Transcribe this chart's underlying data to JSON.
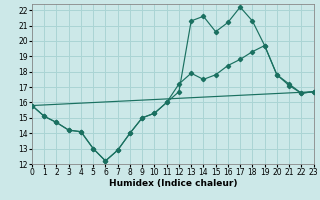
{
  "xlabel": "Humidex (Indice chaleur)",
  "background_color": "#cce8e8",
  "grid_color": "#aad4d4",
  "line_color": "#1a7060",
  "xlim": [
    0,
    23
  ],
  "ylim": [
    12,
    22.4
  ],
  "xticks": [
    0,
    1,
    2,
    3,
    4,
    5,
    6,
    7,
    8,
    9,
    10,
    11,
    12,
    13,
    14,
    15,
    16,
    17,
    18,
    19,
    20,
    21,
    22,
    23
  ],
  "yticks": [
    12,
    13,
    14,
    15,
    16,
    17,
    18,
    19,
    20,
    21,
    22
  ],
  "curve1_x": [
    0,
    1,
    2,
    3,
    4,
    5,
    6,
    7,
    8,
    9,
    10,
    11,
    12,
    13,
    14,
    15,
    16,
    17,
    18,
    19,
    20,
    21,
    22,
    23
  ],
  "curve1_y": [
    15.8,
    15.1,
    14.7,
    14.2,
    14.1,
    13.0,
    12.2,
    12.9,
    14.0,
    15.0,
    15.3,
    16.0,
    16.7,
    21.3,
    21.6,
    20.6,
    21.2,
    22.2,
    21.3,
    19.7,
    17.8,
    17.1,
    16.6,
    16.7
  ],
  "curve2_x": [
    0,
    1,
    2,
    3,
    4,
    5,
    6,
    7,
    8,
    9,
    10,
    11,
    12,
    13,
    14,
    15,
    16,
    17,
    18,
    19,
    20,
    21,
    22,
    23
  ],
  "curve2_y": [
    15.8,
    15.1,
    14.7,
    14.2,
    14.1,
    13.0,
    12.2,
    12.9,
    14.0,
    15.0,
    15.3,
    16.0,
    17.2,
    17.9,
    17.5,
    17.8,
    18.4,
    18.8,
    19.3,
    19.7,
    17.8,
    17.2,
    16.6,
    16.7
  ],
  "line_x": [
    0,
    23
  ],
  "line_y": [
    15.8,
    16.7
  ],
  "xlabel_fontsize": 6.5,
  "tick_fontsize": 5.5
}
